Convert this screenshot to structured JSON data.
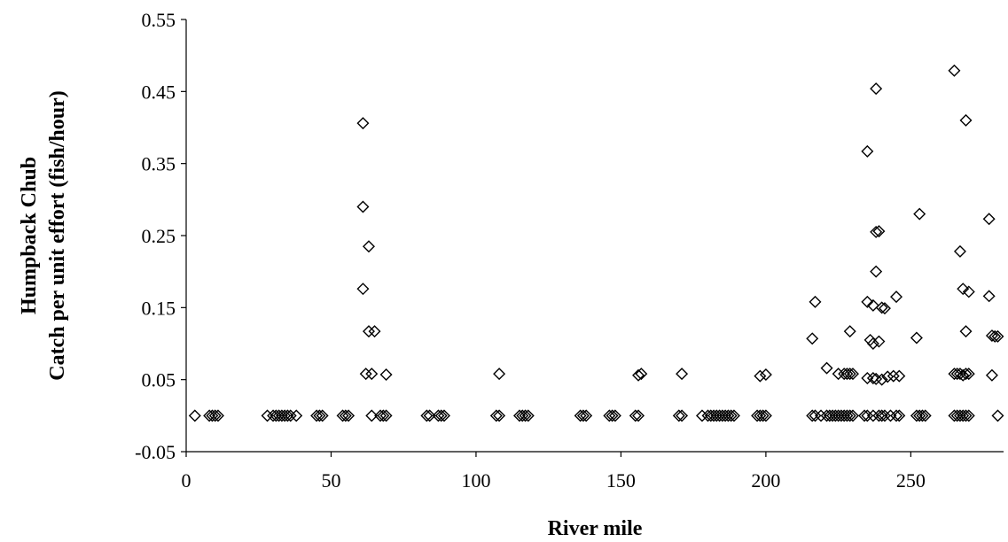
{
  "chart_data": {
    "type": "scatter",
    "title": "",
    "xlabel": "River mile",
    "ylabel_lines": [
      "Humpback Chub",
      "Catch per unit effort (fish/hour)"
    ],
    "xlim": [
      0,
      282
    ],
    "ylim": [
      -0.05,
      0.55
    ],
    "x_ticks": [
      "0",
      "50",
      "100",
      "150",
      "200",
      "250"
    ],
    "y_ticks": [
      "-0.05",
      "0.05",
      "0.15",
      "0.25",
      "0.35",
      "0.45",
      "0.55"
    ],
    "grid": false,
    "legend": "none",
    "marker": "diamond-open",
    "series": [
      {
        "points": [
          [
            3,
            0
          ],
          [
            8,
            0
          ],
          [
            9,
            0
          ],
          [
            10,
            0
          ],
          [
            11,
            0
          ],
          [
            28,
            0
          ],
          [
            30,
            0
          ],
          [
            31,
            0
          ],
          [
            32,
            0
          ],
          [
            33,
            0
          ],
          [
            34,
            0
          ],
          [
            35,
            0
          ],
          [
            36,
            0
          ],
          [
            38,
            0
          ],
          [
            45,
            0
          ],
          [
            46,
            0
          ],
          [
            47,
            0
          ],
          [
            54,
            0
          ],
          [
            55,
            0
          ],
          [
            56,
            0
          ],
          [
            61,
            0.406
          ],
          [
            61,
            0.29
          ],
          [
            63,
            0.235
          ],
          [
            61,
            0.176
          ],
          [
            63,
            0.117
          ],
          [
            65,
            0.117
          ],
          [
            62,
            0.058
          ],
          [
            64,
            0.058
          ],
          [
            69,
            0.057
          ],
          [
            64,
            0
          ],
          [
            67,
            0
          ],
          [
            68,
            0
          ],
          [
            69,
            0
          ],
          [
            83,
            0
          ],
          [
            84,
            0
          ],
          [
            87,
            0
          ],
          [
            88,
            0
          ],
          [
            89,
            0
          ],
          [
            107,
            0
          ],
          [
            108,
            0
          ],
          [
            108,
            0.058
          ],
          [
            115,
            0
          ],
          [
            116,
            0
          ],
          [
            117,
            0
          ],
          [
            118,
            0
          ],
          [
            136,
            0
          ],
          [
            137,
            0
          ],
          [
            138,
            0
          ],
          [
            146,
            0
          ],
          [
            147,
            0
          ],
          [
            148,
            0
          ],
          [
            155,
            0
          ],
          [
            156,
            0
          ],
          [
            156,
            0.056
          ],
          [
            157,
            0.058
          ],
          [
            170,
            0
          ],
          [
            171,
            0
          ],
          [
            171,
            0.058
          ],
          [
            178,
            0
          ],
          [
            180,
            0
          ],
          [
            181,
            0
          ],
          [
            182,
            0
          ],
          [
            183,
            0
          ],
          [
            184,
            0
          ],
          [
            185,
            0
          ],
          [
            186,
            0
          ],
          [
            187,
            0
          ],
          [
            188,
            0
          ],
          [
            189,
            0
          ],
          [
            197,
            0
          ],
          [
            198,
            0
          ],
          [
            199,
            0
          ],
          [
            200,
            0
          ],
          [
            198,
            0.055
          ],
          [
            200,
            0.057
          ],
          [
            216,
            0
          ],
          [
            217,
            0
          ],
          [
            219,
            0
          ],
          [
            216,
            0.107
          ],
          [
            217,
            0.158
          ],
          [
            221,
            0
          ],
          [
            222,
            0
          ],
          [
            223,
            0
          ],
          [
            224,
            0
          ],
          [
            225,
            0
          ],
          [
            226,
            0
          ],
          [
            227,
            0
          ],
          [
            228,
            0
          ],
          [
            229,
            0
          ],
          [
            230,
            0
          ],
          [
            221,
            0.066
          ],
          [
            225,
            0.058
          ],
          [
            227,
            0.058
          ],
          [
            228,
            0.058
          ],
          [
            229,
            0.058
          ],
          [
            230,
            0.058
          ],
          [
            229,
            0.117
          ],
          [
            234,
            0
          ],
          [
            235,
            0
          ],
          [
            237,
            0
          ],
          [
            239,
            0
          ],
          [
            240,
            0
          ],
          [
            241,
            0
          ],
          [
            235,
            0.367
          ],
          [
            238,
            0.454
          ],
          [
            238,
            0.255
          ],
          [
            239,
            0.256
          ],
          [
            238,
            0.2
          ],
          [
            235,
            0.158
          ],
          [
            237,
            0.153
          ],
          [
            240,
            0.15
          ],
          [
            241,
            0.149
          ],
          [
            236,
            0.105
          ],
          [
            237,
            0.1
          ],
          [
            239,
            0.103
          ],
          [
            235,
            0.052
          ],
          [
            237,
            0.052
          ],
          [
            238,
            0.051
          ],
          [
            240,
            0.05
          ],
          [
            242,
            0.054
          ],
          [
            243,
            0
          ],
          [
            245,
            0
          ],
          [
            246,
            0
          ],
          [
            244,
            0.055
          ],
          [
            246,
            0.055
          ],
          [
            245,
            0.165
          ],
          [
            252,
            0
          ],
          [
            253,
            0
          ],
          [
            254,
            0
          ],
          [
            255,
            0
          ],
          [
            252,
            0.108
          ],
          [
            253,
            0.28
          ],
          [
            265,
            0
          ],
          [
            266,
            0
          ],
          [
            267,
            0
          ],
          [
            268,
            0
          ],
          [
            269,
            0
          ],
          [
            270,
            0
          ],
          [
            265,
            0.479
          ],
          [
            269,
            0.41
          ],
          [
            267,
            0.228
          ],
          [
            268,
            0.176
          ],
          [
            270,
            0.172
          ],
          [
            269,
            0.117
          ],
          [
            265,
            0.058
          ],
          [
            266,
            0.058
          ],
          [
            267,
            0.058
          ],
          [
            268,
            0.056
          ],
          [
            269,
            0.058
          ],
          [
            270,
            0.058
          ],
          [
            277,
            0.273
          ],
          [
            277,
            0.166
          ],
          [
            278,
            0.111
          ],
          [
            279,
            0.11
          ],
          [
            280,
            0.11
          ],
          [
            278,
            0.056
          ],
          [
            280,
            0
          ]
        ]
      }
    ]
  }
}
